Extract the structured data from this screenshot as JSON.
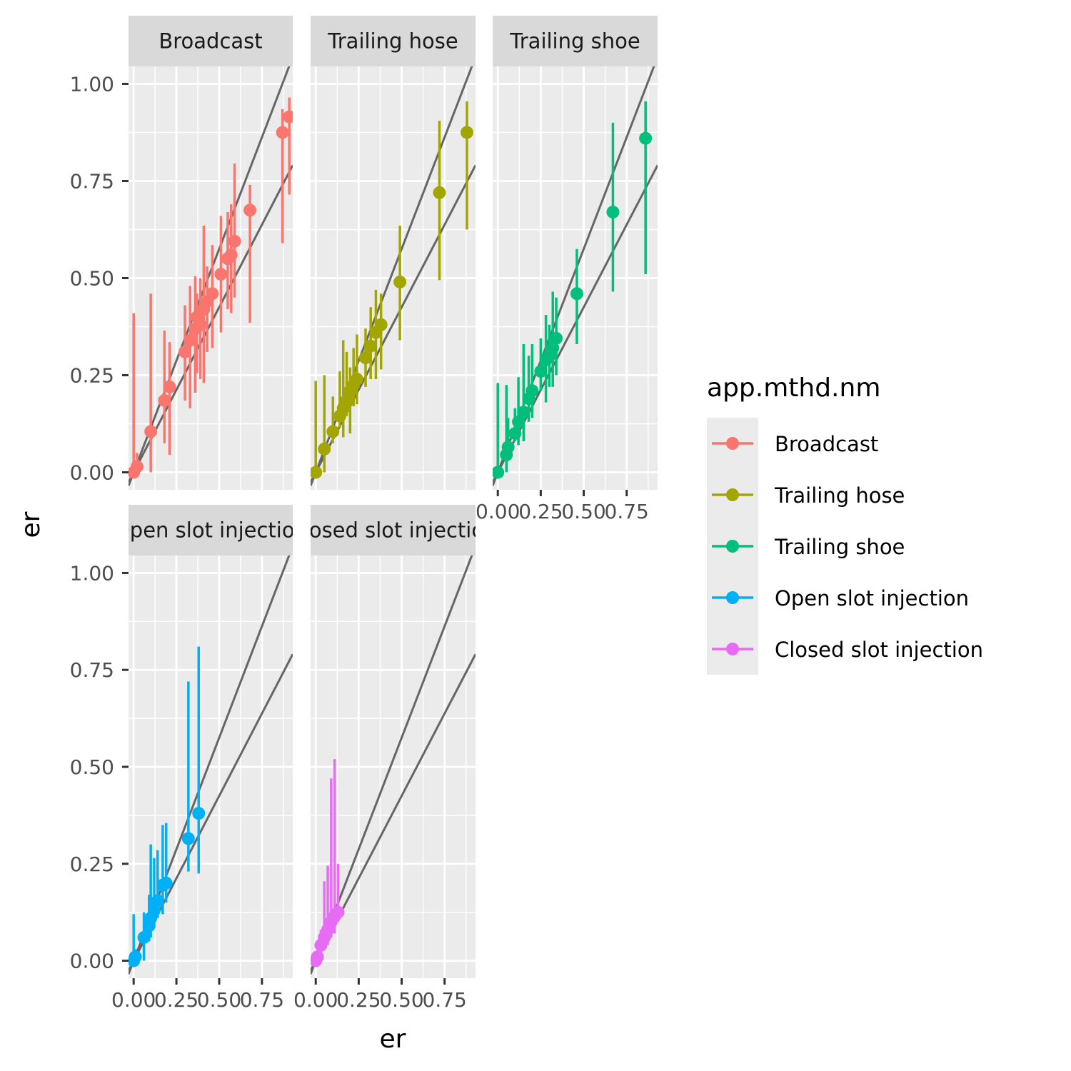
{
  "chart_data": {
    "type": "scatter",
    "xlabel": "er",
    "ylabel": "er",
    "xlim": [
      -0.03,
      0.93
    ],
    "ylim": [
      -0.045,
      1.045
    ],
    "x_ticks": [
      "0.00",
      "0.25",
      "0.50",
      "0.75"
    ],
    "y_ticks": [
      "0.00",
      "0.25",
      "0.50",
      "0.75",
      "1.00"
    ],
    "grid": true,
    "legend": {
      "title": "app.mthd.nm",
      "position": "right"
    },
    "reference_lines": [
      {
        "intercept": 0,
        "slope": 1.15
      },
      {
        "intercept": 0,
        "slope": 0.85
      }
    ],
    "series": [
      {
        "name": "Broadcast",
        "color": "#F8766D",
        "points": [
          {
            "x": 0.0,
            "y": 0.0,
            "lo": 0.0,
            "hi": 0.41
          },
          {
            "x": 0.02,
            "y": 0.015,
            "lo": 0.0,
            "hi": 0.05
          },
          {
            "x": 0.1,
            "y": 0.105,
            "lo": 0.0,
            "hi": 0.46
          },
          {
            "x": 0.18,
            "y": 0.185,
            "lo": 0.075,
            "hi": 0.365
          },
          {
            "x": 0.21,
            "y": 0.22,
            "lo": 0.045,
            "hi": 0.335
          },
          {
            "x": 0.3,
            "y": 0.31,
            "lo": 0.185,
            "hi": 0.43
          },
          {
            "x": 0.33,
            "y": 0.34,
            "lo": 0.165,
            "hi": 0.48
          },
          {
            "x": 0.36,
            "y": 0.37,
            "lo": 0.205,
            "hi": 0.505
          },
          {
            "x": 0.37,
            "y": 0.4,
            "lo": 0.255,
            "hi": 0.46
          },
          {
            "x": 0.39,
            "y": 0.38,
            "lo": 0.24,
            "hi": 0.5
          },
          {
            "x": 0.41,
            "y": 0.42,
            "lo": 0.23,
            "hi": 0.635
          },
          {
            "x": 0.43,
            "y": 0.44,
            "lo": 0.31,
            "hi": 0.53
          },
          {
            "x": 0.46,
            "y": 0.46,
            "lo": 0.32,
            "hi": 0.585
          },
          {
            "x": 0.51,
            "y": 0.51,
            "lo": 0.36,
            "hi": 0.66
          },
          {
            "x": 0.55,
            "y": 0.55,
            "lo": 0.42,
            "hi": 0.67
          },
          {
            "x": 0.57,
            "y": 0.56,
            "lo": 0.41,
            "hi": 0.69
          },
          {
            "x": 0.59,
            "y": 0.595,
            "lo": 0.45,
            "hi": 0.795
          },
          {
            "x": 0.68,
            "y": 0.675,
            "lo": 0.385,
            "hi": 0.74
          },
          {
            "x": 0.87,
            "y": 0.875,
            "lo": 0.59,
            "hi": 0.935
          },
          {
            "x": 0.91,
            "y": 0.915,
            "lo": 0.715,
            "hi": 0.965
          }
        ]
      },
      {
        "name": "Trailing hose",
        "color": "#A3A500",
        "points": [
          {
            "x": 0.0,
            "y": 0.0,
            "lo": 0.0,
            "hi": 0.235
          },
          {
            "x": 0.05,
            "y": 0.06,
            "lo": 0.0,
            "hi": 0.25
          },
          {
            "x": 0.1,
            "y": 0.105,
            "lo": 0.075,
            "hi": 0.195
          },
          {
            "x": 0.14,
            "y": 0.145,
            "lo": 0.115,
            "hi": 0.26
          },
          {
            "x": 0.16,
            "y": 0.165,
            "lo": 0.09,
            "hi": 0.34
          },
          {
            "x": 0.18,
            "y": 0.185,
            "lo": 0.145,
            "hi": 0.31
          },
          {
            "x": 0.2,
            "y": 0.21,
            "lo": 0.1,
            "hi": 0.27
          },
          {
            "x": 0.22,
            "y": 0.225,
            "lo": 0.17,
            "hi": 0.32
          },
          {
            "x": 0.24,
            "y": 0.24,
            "lo": 0.175,
            "hi": 0.355
          },
          {
            "x": 0.29,
            "y": 0.295,
            "lo": 0.22,
            "hi": 0.37
          },
          {
            "x": 0.32,
            "y": 0.325,
            "lo": 0.24,
            "hi": 0.425
          },
          {
            "x": 0.35,
            "y": 0.36,
            "lo": 0.24,
            "hi": 0.47
          },
          {
            "x": 0.38,
            "y": 0.38,
            "lo": 0.265,
            "hi": 0.46
          },
          {
            "x": 0.49,
            "y": 0.49,
            "lo": 0.34,
            "hi": 0.635
          },
          {
            "x": 0.72,
            "y": 0.72,
            "lo": 0.495,
            "hi": 0.905
          },
          {
            "x": 0.88,
            "y": 0.875,
            "lo": 0.625,
            "hi": 0.955
          }
        ]
      },
      {
        "name": "Trailing shoe",
        "color": "#00BF7D",
        "points": [
          {
            "x": 0.0,
            "y": 0.0,
            "lo": 0.0,
            "hi": 0.23
          },
          {
            "x": 0.05,
            "y": 0.045,
            "lo": 0.0,
            "hi": 0.225
          },
          {
            "x": 0.06,
            "y": 0.065,
            "lo": 0.04,
            "hi": 0.14
          },
          {
            "x": 0.1,
            "y": 0.1,
            "lo": 0.08,
            "hi": 0.165
          },
          {
            "x": 0.12,
            "y": 0.13,
            "lo": 0.07,
            "hi": 0.245
          },
          {
            "x": 0.15,
            "y": 0.155,
            "lo": 0.08,
            "hi": 0.33
          },
          {
            "x": 0.18,
            "y": 0.19,
            "lo": 0.13,
            "hi": 0.3
          },
          {
            "x": 0.2,
            "y": 0.21,
            "lo": 0.14,
            "hi": 0.33
          },
          {
            "x": 0.25,
            "y": 0.26,
            "lo": 0.21,
            "hi": 0.345
          },
          {
            "x": 0.28,
            "y": 0.29,
            "lo": 0.18,
            "hi": 0.405
          },
          {
            "x": 0.3,
            "y": 0.3,
            "lo": 0.22,
            "hi": 0.38
          },
          {
            "x": 0.32,
            "y": 0.32,
            "lo": 0.22,
            "hi": 0.465
          },
          {
            "x": 0.34,
            "y": 0.345,
            "lo": 0.25,
            "hi": 0.45
          },
          {
            "x": 0.46,
            "y": 0.46,
            "lo": 0.33,
            "hi": 0.575
          },
          {
            "x": 0.67,
            "y": 0.67,
            "lo": 0.465,
            "hi": 0.9
          },
          {
            "x": 0.86,
            "y": 0.86,
            "lo": 0.51,
            "hi": 0.955
          }
        ]
      },
      {
        "name": "Open slot injection",
        "color": "#00B0F6",
        "points": [
          {
            "x": 0.0,
            "y": 0.0,
            "lo": 0.0,
            "hi": 0.12
          },
          {
            "x": 0.01,
            "y": 0.01,
            "lo": 0.0,
            "hi": 0.03
          },
          {
            "x": 0.06,
            "y": 0.06,
            "lo": 0.0,
            "hi": 0.125
          },
          {
            "x": 0.09,
            "y": 0.09,
            "lo": 0.05,
            "hi": 0.17
          },
          {
            "x": 0.1,
            "y": 0.11,
            "lo": 0.06,
            "hi": 0.3
          },
          {
            "x": 0.12,
            "y": 0.13,
            "lo": 0.085,
            "hi": 0.265
          },
          {
            "x": 0.14,
            "y": 0.155,
            "lo": 0.11,
            "hi": 0.285
          },
          {
            "x": 0.17,
            "y": 0.195,
            "lo": 0.12,
            "hi": 0.35
          },
          {
            "x": 0.19,
            "y": 0.2,
            "lo": 0.15,
            "hi": 0.355
          },
          {
            "x": 0.32,
            "y": 0.315,
            "lo": 0.23,
            "hi": 0.72
          },
          {
            "x": 0.38,
            "y": 0.38,
            "lo": 0.225,
            "hi": 0.81
          }
        ]
      },
      {
        "name": "Closed slot injection",
        "color": "#E76BF3",
        "points": [
          {
            "x": 0.0,
            "y": 0.0,
            "lo": 0.0,
            "hi": 0.01
          },
          {
            "x": 0.01,
            "y": 0.01,
            "lo": 0.0,
            "hi": 0.025
          },
          {
            "x": 0.03,
            "y": 0.04,
            "lo": 0.02,
            "hi": 0.08
          },
          {
            "x": 0.05,
            "y": 0.06,
            "lo": 0.03,
            "hi": 0.205
          },
          {
            "x": 0.07,
            "y": 0.08,
            "lo": 0.04,
            "hi": 0.245
          },
          {
            "x": 0.09,
            "y": 0.1,
            "lo": 0.06,
            "hi": 0.47
          },
          {
            "x": 0.11,
            "y": 0.115,
            "lo": 0.07,
            "hi": 0.52
          },
          {
            "x": 0.13,
            "y": 0.125,
            "lo": 0.1,
            "hi": 0.25
          }
        ]
      }
    ]
  }
}
